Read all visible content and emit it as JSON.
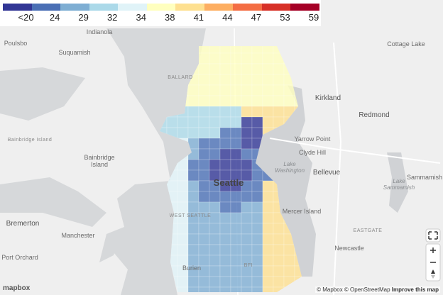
{
  "legend": {
    "items": [
      {
        "color": "#313695",
        "label": "<20"
      },
      {
        "color": "#4a6fb5",
        "label": "24"
      },
      {
        "color": "#7eaed3",
        "label": "29"
      },
      {
        "color": "#abd9e9",
        "label": "32"
      },
      {
        "color": "#e0f3f8",
        "label": "34"
      },
      {
        "color": "#ffffbf",
        "label": "38"
      },
      {
        "color": "#fee090",
        "label": "41"
      },
      {
        "color": "#fdae61",
        "label": "44"
      },
      {
        "color": "#f46d43",
        "label": "47"
      },
      {
        "color": "#d73027",
        "label": "53"
      },
      {
        "color": "#a50026",
        "label": "59"
      }
    ]
  },
  "places": {
    "indianola": "Indianola",
    "poulsbo": "Poulsbo",
    "suquamish": "Suquamish",
    "bainbridge_small": "Bainbridge Island",
    "bainbridge_1": "Bainbridge",
    "bainbridge_2": "Island",
    "bremerton": "Bremerton",
    "manchester": "Manchester",
    "port_orchard": "Port Orchard",
    "seattle": "Seattle",
    "kirkland": "Kirkland",
    "redmond": "Redmond",
    "bellevue": "Bellevue",
    "yarrow_point": "Yarrow Point",
    "clyde_hill": "Clyde Hill",
    "lake_washington_1": "Lake",
    "lake_washington_2": "Washington",
    "mercer_island": "Mercer Island",
    "newcastle": "Newcastle",
    "eastgate": "EASTGATE",
    "sammamish": "Sammamish",
    "lake_sammamish_1": "Lake",
    "lake_sammamish_2": "Sammamish",
    "cottage_lake": "Cottage Lake",
    "ballard": "BALLARD",
    "west_seattle": "WEST SEATTLE",
    "burien": "Burien",
    "bfi": "BFI"
  },
  "attribution": {
    "mapbox": "© Mapbox",
    "osm": "© OpenStreetMap",
    "improve": "Improve this map",
    "logo": "mapbox"
  }
}
